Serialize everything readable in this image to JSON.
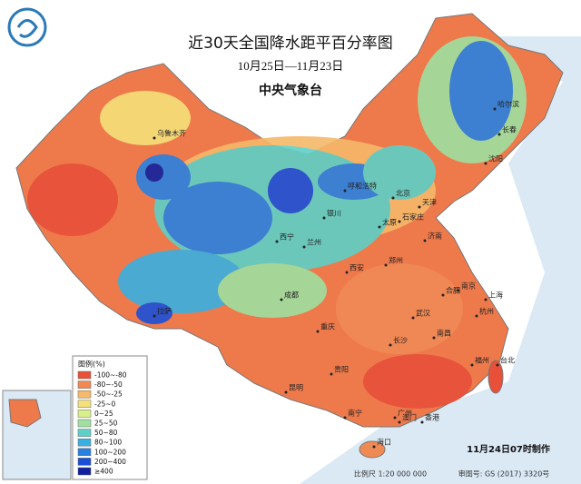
{
  "header": {
    "title": "近30天全国降水距平百分率图",
    "period": "10月25日—11月23日",
    "agency": "中央气象台"
  },
  "legend": {
    "title": "图例(%)",
    "items": [
      {
        "label": "-100~-80",
        "color": "#e8503a"
      },
      {
        "label": "-80~-50",
        "color": "#f08a55"
      },
      {
        "label": "-50~-25",
        "color": "#f6b96a"
      },
      {
        "label": "-25~0",
        "color": "#f5e07a"
      },
      {
        "label": "0~25",
        "color": "#d8f08a"
      },
      {
        "label": "25~50",
        "color": "#9fe0a0"
      },
      {
        "label": "50~80",
        "color": "#5fd0c8"
      },
      {
        "label": "80~100",
        "color": "#3ab0e0"
      },
      {
        "label": "100~200",
        "color": "#2a80e0"
      },
      {
        "label": "200~400",
        "color": "#1a4fd8"
      },
      {
        "label": "≥400",
        "color": "#1020a0"
      }
    ]
  },
  "cities": [
    "乌鲁木齐",
    "拉萨",
    "西宁",
    "兰州",
    "银川",
    "呼和浩特",
    "北京",
    "天津",
    "石家庄",
    "太原",
    "济南",
    "郑州",
    "西安",
    "成都",
    "重庆",
    "贵阳",
    "昆明",
    "南宁",
    "广州",
    "香港",
    "澳门",
    "海口",
    "长沙",
    "武汉",
    "南昌",
    "合肥",
    "南京",
    "上海",
    "杭州",
    "福州",
    "台北",
    "沈阳",
    "长春",
    "哈尔滨"
  ],
  "footer": {
    "stamp": "11月24日07时制作",
    "scale": "比例尺 1:20 000 000",
    "approval": "审图号: GS (2017) 3320号"
  }
}
